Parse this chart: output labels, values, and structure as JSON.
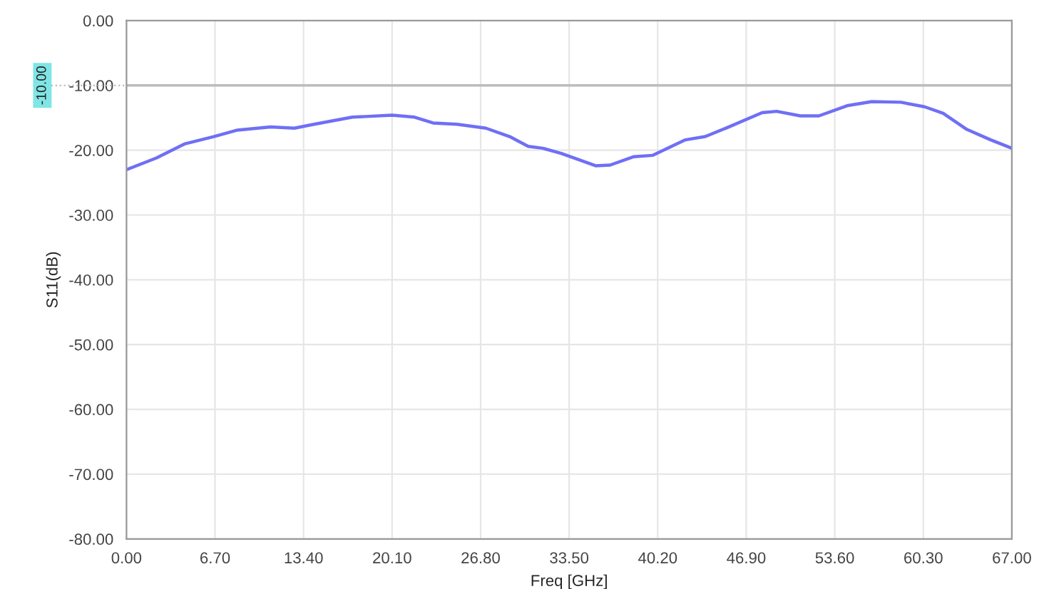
{
  "chart_data": {
    "type": "line",
    "xlabel": "Freq [GHz]",
    "ylabel": "S11(dB)",
    "x": [
      0,
      2.27,
      4.44,
      6.6,
      8.4,
      10.9,
      12.7,
      14.2,
      17.1,
      20.1,
      21.8,
      23.2,
      25.0,
      27.2,
      29.0,
      30.4,
      31.5,
      32.9,
      35.5,
      36.6,
      38.4,
      39.8,
      42.3,
      43.8,
      45.6,
      48.1,
      49.2,
      51.0,
      52.4,
      54.6,
      56.4,
      58.6,
      60.4,
      61.8,
      63.6,
      65.4,
      67.0
    ],
    "series": [
      {
        "color": "#6f6ff5",
        "values": [
          -23.0,
          -21.2,
          -19.0,
          -17.9,
          -16.9,
          -16.4,
          -16.6,
          -16.0,
          -14.9,
          -14.6,
          -14.9,
          -15.8,
          -16.0,
          -16.6,
          -17.9,
          -19.4,
          -19.7,
          -20.5,
          -22.4,
          -22.3,
          -21.0,
          -20.8,
          -18.4,
          -17.9,
          -16.4,
          -14.2,
          -14.0,
          -14.7,
          -14.7,
          -13.1,
          -12.5,
          -12.6,
          -13.3,
          -14.3,
          -16.8,
          -18.4,
          -19.7
        ]
      }
    ],
    "xlim": [
      0,
      67
    ],
    "ylim": [
      -80,
      0
    ],
    "xticks": [
      {
        "value": 0,
        "label": "0.00"
      },
      {
        "value": 6.7,
        "label": "6.70"
      },
      {
        "value": 13.4,
        "label": "13.40"
      },
      {
        "value": 20.1,
        "label": "20.10"
      },
      {
        "value": 26.8,
        "label": "26.80"
      },
      {
        "value": 33.5,
        "label": "33.50"
      },
      {
        "value": 40.2,
        "label": "40.20"
      },
      {
        "value": 46.9,
        "label": "46.90"
      },
      {
        "value": 53.6,
        "label": "53.60"
      },
      {
        "value": 60.3,
        "label": "60.30"
      },
      {
        "value": 67,
        "label": "67.00"
      }
    ],
    "yticks": [
      {
        "value": 0,
        "label": "0.00"
      },
      {
        "value": -10,
        "label": "-10.00"
      },
      {
        "value": -20,
        "label": "-20.00"
      },
      {
        "value": -30,
        "label": "-30.00"
      },
      {
        "value": -40,
        "label": "-40.00"
      },
      {
        "value": -50,
        "label": "-50.00"
      },
      {
        "value": -60,
        "label": "-60.00"
      },
      {
        "value": -70,
        "label": "-70.00"
      },
      {
        "value": -80,
        "label": "-80.00"
      }
    ],
    "ref_lines": [
      {
        "axis": "y",
        "value": -10,
        "label": "-10.00",
        "color": "#bcbcbc"
      }
    ],
    "grid": true,
    "marker": "none",
    "line_style": "solid"
  }
}
